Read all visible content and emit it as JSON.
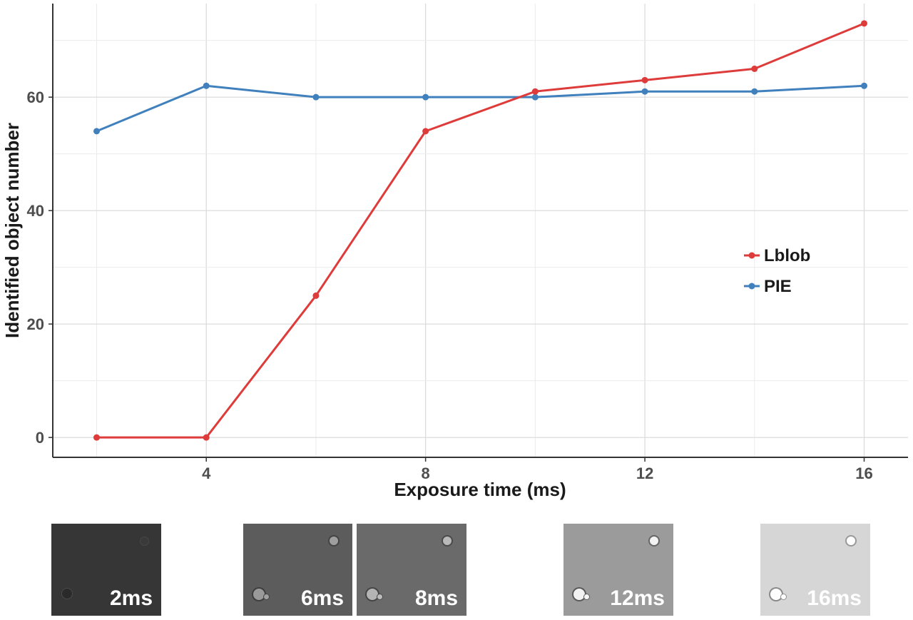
{
  "chart_data": {
    "type": "line",
    "title": "",
    "xlabel": "Exposure time (ms)",
    "ylabel": "Identified object number",
    "xlim": [
      1.2,
      16.8
    ],
    "ylim": [
      -3.5,
      76.5
    ],
    "x_ticks": [
      4,
      8,
      12,
      16
    ],
    "y_ticks": [
      0,
      20,
      40,
      60
    ],
    "grid": true,
    "legend_position": "right",
    "x": [
      2,
      4,
      6,
      8,
      10,
      12,
      14,
      16
    ],
    "series": [
      {
        "name": "Lblob",
        "color": "#de3b3b",
        "values": [
          0,
          0,
          25,
          54,
          61,
          63,
          65,
          73
        ]
      },
      {
        "name": "PIE",
        "color": "#3f80bd",
        "values": [
          54,
          62,
          60,
          60,
          60,
          61,
          61,
          62
        ]
      }
    ]
  },
  "thumbnails": [
    {
      "label": "2ms",
      "background": "#363636"
    },
    {
      "label": "6ms",
      "background": "#5c5c5c"
    },
    {
      "label": "8ms",
      "background": "#6a6a6a"
    },
    {
      "label": "12ms",
      "background": "#9b9b9b"
    },
    {
      "label": "16ms",
      "background": "#d6d6d6"
    }
  ]
}
